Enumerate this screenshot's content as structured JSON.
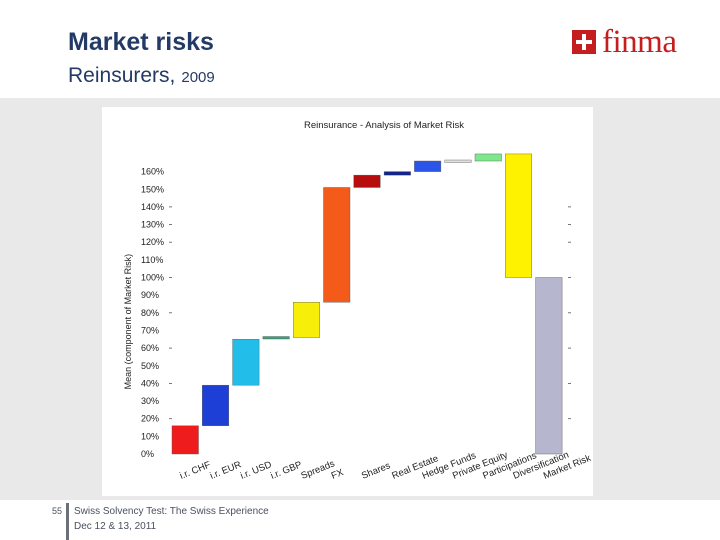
{
  "slide": {
    "title": "Market risks",
    "subtitle": "Reinsurers,",
    "year": "2009",
    "logo_text": "finma",
    "page_number": "55",
    "footer_line1": "Swiss Solvency Test: The Swiss Experience",
    "footer_line2": "Dec 12 & 13, 2011"
  },
  "colors": {
    "title": "#243a66",
    "logo_red": "#c41e1e",
    "band": "#e9e9e9"
  },
  "chart_data": {
    "type": "bar",
    "subtype": "waterfall",
    "title": "Reinsurance - Analysis of Market Risk",
    "xlabel": "",
    "ylabel": "Mean (component of Market Risk)",
    "ylim": [
      0,
      180
    ],
    "yticks": [
      0,
      10,
      20,
      30,
      40,
      50,
      60,
      70,
      80,
      90,
      100,
      110,
      120,
      130,
      140,
      150,
      160
    ],
    "ytick_labels": [
      "0%",
      "10%",
      "20%",
      "30%",
      "40%",
      "50%",
      "60%",
      "70%",
      "80%",
      "90%",
      "100%",
      "110%",
      "120%",
      "130%",
      "140%",
      "150%",
      "160%"
    ],
    "ytick_dash_values": [
      20,
      40,
      60,
      80,
      100,
      120,
      130,
      140
    ],
    "categories": [
      "i.r. CHF",
      "i.r. EUR",
      "i.r. USD",
      "i.r. GBP",
      "Spreads",
      "FX",
      "Shares",
      "Real Estate",
      "Hedge Funds",
      "Private Equity",
      "Participations",
      "Diversification",
      "Market Risk"
    ],
    "bars": [
      {
        "category": "i.r. CHF",
        "start": 0,
        "end": 16,
        "color": "#ee1c1c"
      },
      {
        "category": "i.r. EUR",
        "start": 16,
        "end": 39,
        "color": "#1e3fd6"
      },
      {
        "category": "i.r. USD",
        "start": 39,
        "end": 65,
        "color": "#22bde8"
      },
      {
        "category": "i.r. GBP",
        "start": 65,
        "end": 66,
        "color": "#3aa27e"
      },
      {
        "category": "Spreads",
        "start": 66,
        "end": 86,
        "color": "#f7ee0a"
      },
      {
        "category": "FX",
        "start": 86,
        "end": 151,
        "color": "#f45a1a"
      },
      {
        "category": "Shares",
        "start": 151,
        "end": 158,
        "color": "#b80d0d"
      },
      {
        "category": "Real Estate",
        "start": 158,
        "end": 160,
        "color": "#12238a"
      },
      {
        "category": "Hedge Funds",
        "start": 160,
        "end": 166,
        "color": "#2a55e8"
      },
      {
        "category": "Private Equity",
        "start": 166,
        "end": 166,
        "color": "#e0e0e0"
      },
      {
        "category": "Participations",
        "start": 166,
        "end": 170,
        "color": "#7ee68c"
      },
      {
        "category": "Diversification",
        "start": 170,
        "end": 100,
        "color": "#fff200"
      },
      {
        "category": "Market Risk",
        "start": 0,
        "end": 100,
        "color": "#b6b6cf"
      }
    ]
  }
}
